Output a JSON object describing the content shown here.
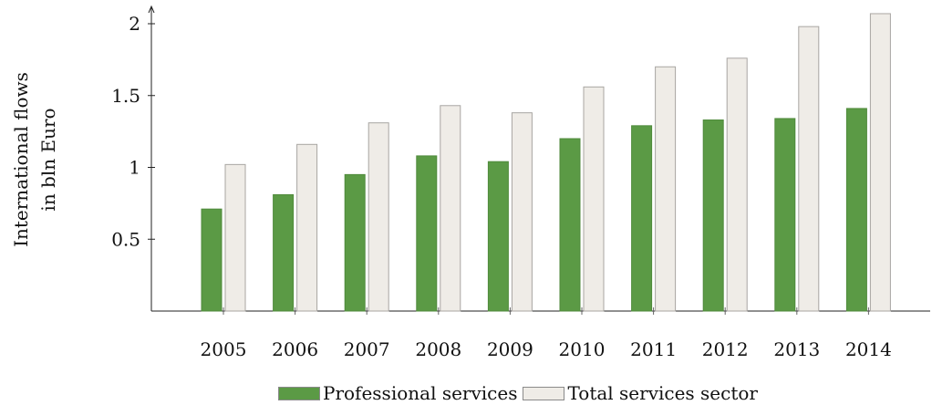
{
  "chart_data": {
    "type": "bar",
    "title": "",
    "xlabel": "",
    "ylabel": "International flows in bln Euro",
    "ylabel_lines": [
      "International flows",
      "in bln Euro"
    ],
    "categories": [
      "2005",
      "2006",
      "2007",
      "2008",
      "2009",
      "2010",
      "2011",
      "2012",
      "2013",
      "2014"
    ],
    "series": [
      {
        "name": "Professional services",
        "color": "#5b9a45",
        "values": [
          0.71,
          0.81,
          0.95,
          1.08,
          1.04,
          1.2,
          1.29,
          1.33,
          1.34,
          1.41
        ]
      },
      {
        "name": "Total services sector",
        "color": "#efece7",
        "values": [
          1.02,
          1.16,
          1.31,
          1.43,
          1.38,
          1.56,
          1.7,
          1.76,
          1.98,
          2.07
        ]
      }
    ],
    "yticks": [
      "0.5",
      "1",
      "1.5",
      "2"
    ],
    "ytick_values": [
      0.5,
      1,
      1.5,
      2
    ],
    "ylim": [
      0,
      2.1
    ],
    "grid": false,
    "legend_position": "bottom-center"
  }
}
